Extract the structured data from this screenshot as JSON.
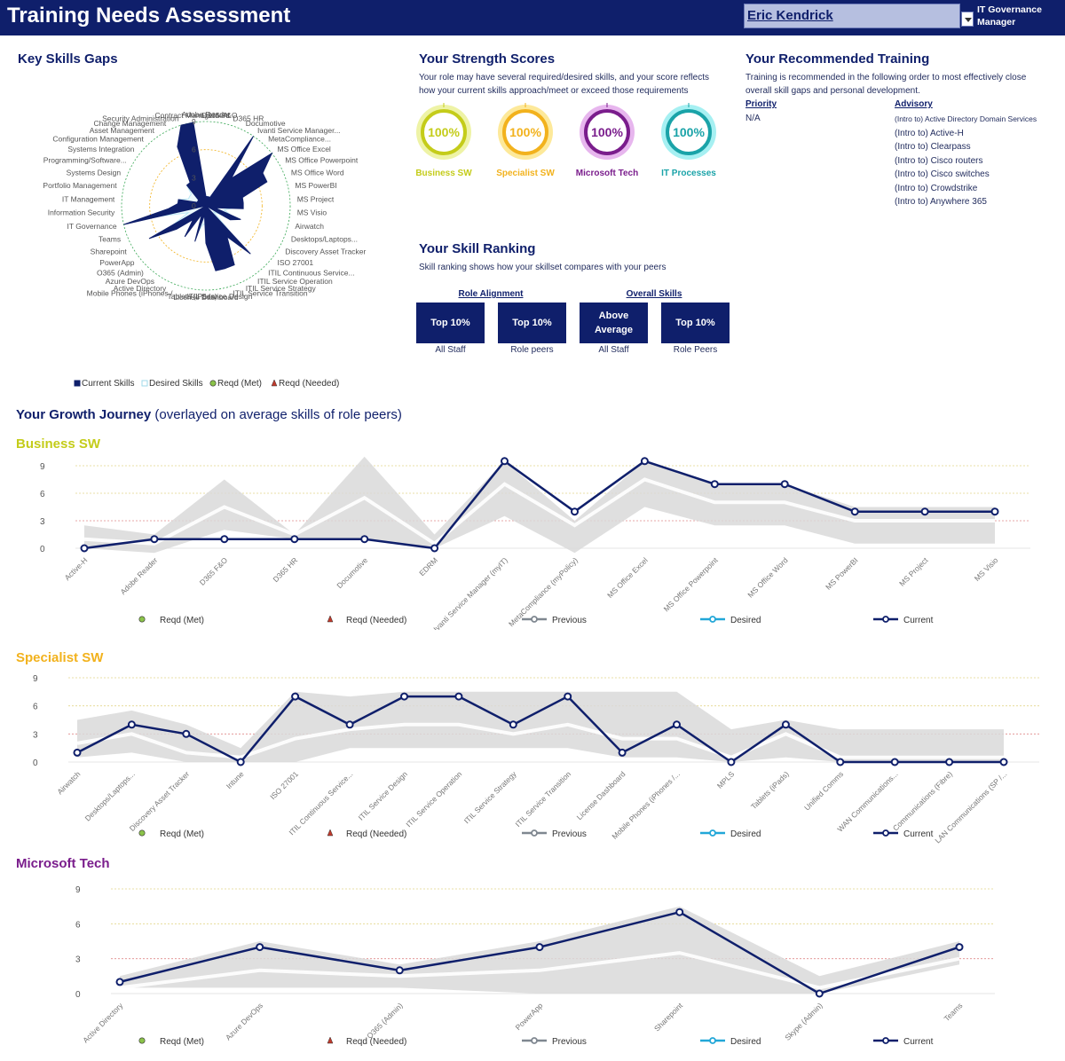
{
  "header": {
    "title": "Training Needs Assessment",
    "user_name": "Eric Kendrick",
    "user_role_line1": "IT Governance",
    "user_role_line2": "Manager"
  },
  "key_skills": {
    "title": "Key Skills Gaps",
    "legend": [
      "Current Skills",
      "Desired Skills",
      "Reqd (Met)",
      "Reqd (Needed)"
    ]
  },
  "strength": {
    "title": "Your Strength Scores",
    "desc_line1": "Your role may have several required/desired skills, and your score reflects",
    "desc_line2": "how your current skills approach/meet or exceed those requirements",
    "scores": [
      {
        "label": "Business SW",
        "value": "100%",
        "color": "#c4cc1a",
        "fill": "#eef3a6"
      },
      {
        "label": "Specialist SW",
        "value": "100%",
        "color": "#f2b21d",
        "fill": "#fde99a"
      },
      {
        "label": "Microsoft Tech",
        "value": "100%",
        "color": "#7a1d8c",
        "fill": "#e7b6ee"
      },
      {
        "label": "IT Processes",
        "value": "100%",
        "color": "#1aa3a8",
        "fill": "#a6f0f2"
      }
    ]
  },
  "ranking": {
    "title": "Your Skill Ranking",
    "desc": "Skill ranking shows how your skillset compares with your peers",
    "groups": [
      "Role Alignment",
      "Overall Skills"
    ],
    "boxes": [
      {
        "value_line1": "Top 10%",
        "value_line2": "",
        "sub": "All Staff"
      },
      {
        "value_line1": "Top 10%",
        "value_line2": "",
        "sub": "Role peers"
      },
      {
        "value_line1": "Above",
        "value_line2": "Average",
        "sub": "All Staff"
      },
      {
        "value_line1": "Top 10%",
        "value_line2": "",
        "sub": "Role Peers"
      }
    ]
  },
  "training": {
    "title": "Your Recommended Training",
    "desc_line1": "Training is recommended in the following order to most effectively close",
    "desc_line2": "overall skill gaps and personal development.",
    "priority_header": "Priority",
    "priority_value": "N/A",
    "advisory_header": "Advisory",
    "advisory_items": [
      "(Intro to) Active Directory Domain Services",
      "(Intro to) Active-H",
      "(Intro to) Clearpass",
      "(Intro to) Cisco routers",
      "(Intro to) Cisco switches",
      "(Intro to) Crowdstrike",
      "(Intro to) Anywhere 365"
    ]
  },
  "growth": {
    "title": "Your Growth Journey",
    "subtitle": "(overlayed on average skills of role peers)",
    "legend": [
      "Reqd (Met)",
      "Reqd (Needed)",
      "Previous",
      "Desired",
      "Current"
    ]
  },
  "colors": {
    "navy": "#0f1f6b",
    "business": "#c4cc1a",
    "specialist": "#f2b21d",
    "microsoft": "#7a1d8c",
    "desired": "#22a7d8",
    "previous": "#7f8790",
    "band": "#d9d9d9",
    "green": "#8bc34a",
    "red": "#c0392b"
  },
  "chart_data": [
    {
      "type": "radar",
      "title": "Key Skills Gaps",
      "rticks": [
        0,
        3,
        6,
        9
      ],
      "rlim": [
        0,
        9
      ],
      "categories": [
        "Adobe Reader",
        "D365 F&O",
        "D365 HR",
        "Documotive",
        "Ivanti Service Manager...",
        "MetaCompliance...",
        "MS Office Excel",
        "MS Office Powerpoint",
        "MS Office Word",
        "MS PowerBI",
        "MS Project",
        "MS Visio",
        "Airwatch",
        "Desktops/Laptops...",
        "Discovery Asset Tracker",
        "ISO 27001",
        "ITIL Continuous Service...",
        "ITIL Service Operation",
        "ITIL Service Strategy",
        "ITIL Service Transition",
        "ITIL Service Design",
        "License Dashboard",
        "Tablets (iPads)",
        "Mobile Phones (iPhones /...",
        "Active Directory",
        "Azure DevOps",
        "O365 (Admin)",
        "PowerApp",
        "Sharepoint",
        "Teams",
        "IT Governance",
        "Information Security",
        "IT Management",
        "Portfolio Management",
        "Systems Design",
        "Programming/Software...",
        "Systems Integration",
        "Configuration Management",
        "Asset Management",
        "Change Management",
        "Security Administration",
        "Contract Management"
      ],
      "series": [
        {
          "name": "Current Skills",
          "values": [
            1,
            1,
            1,
            1,
            9,
            4,
            9,
            7,
            7,
            4,
            4,
            4,
            1,
            4,
            3,
            0,
            7,
            4,
            7,
            7,
            7,
            4,
            1,
            4,
            1,
            4,
            2,
            4,
            7,
            0,
            9,
            4,
            3,
            3,
            1,
            1,
            1,
            3,
            3,
            7,
            9,
            9
          ]
        },
        {
          "name": "Desired Skills",
          "values": [
            1,
            1,
            1,
            1,
            5,
            3,
            5,
            4,
            4,
            3,
            3,
            3,
            2,
            3,
            2,
            1,
            4,
            3,
            4,
            4,
            4,
            2,
            2,
            3,
            1,
            3,
            2,
            3,
            4,
            2,
            5,
            3,
            3,
            3,
            2,
            2,
            2,
            3,
            3,
            4,
            5,
            5
          ]
        }
      ]
    },
    {
      "type": "line",
      "title": "Business SW",
      "ylim": [
        0,
        9
      ],
      "yticks": [
        0,
        3,
        6,
        9
      ],
      "categories": [
        "Active-H",
        "Adobe Reader",
        "D365 F&O",
        "D365 HR",
        "Documotive",
        "EDRM",
        "Ivanti Service Manager (myIT)",
        "MetaCompliance (myPolicy)",
        "MS Office Excel",
        "MS Office Powerpoint",
        "MS Office Word",
        "MS PowerBI",
        "MS Project",
        "MS Visio"
      ],
      "series": [
        {
          "name": "Current",
          "values": [
            0,
            1,
            1,
            1,
            1,
            0,
            9.5,
            4,
            9.5,
            7,
            7,
            4,
            4,
            4
          ]
        },
        {
          "name": "Desired",
          "values": [
            1,
            0.5,
            4.5,
            1.5,
            5.5,
            0.5,
            7,
            2.5,
            7.5,
            5,
            5,
            3,
            3,
            3
          ]
        },
        {
          "name": "Band High",
          "values": [
            2.5,
            1.5,
            7.5,
            1.5,
            10,
            1.5,
            9.5,
            3,
            9.5,
            7,
            7,
            4.5,
            4.5,
            4.5
          ]
        },
        {
          "name": "Band Low",
          "values": [
            0,
            -0.5,
            2,
            1,
            1,
            0,
            3.5,
            -0.5,
            4.5,
            2.5,
            2.5,
            0.5,
            0.5,
            0.5
          ]
        }
      ]
    },
    {
      "type": "line",
      "title": "Specialist SW",
      "ylim": [
        0,
        9
      ],
      "yticks": [
        0,
        3,
        6,
        9
      ],
      "categories": [
        "Airwatch",
        "Desktops/Laptops...",
        "Discovery Asset Tracker",
        "Intune",
        "ISO 27001",
        "ITIL Continuous Service...",
        "ITIL Service Design",
        "ITIL Service Operation",
        "ITIL Service Strategy",
        "ITIL Service Transition",
        "License Dashboard",
        "Mobile Phones (iPhones /...",
        "MPLS",
        "Tablets (iPads)",
        "Unified Comms",
        "WAN Communications...",
        "Communications (Fibre)",
        "LAN Communications (SP /..."
      ],
      "series": [
        {
          "name": "Current",
          "values": [
            1,
            4,
            3,
            0,
            7,
            4,
            7,
            7,
            4,
            7,
            1,
            4,
            0,
            4,
            0,
            0,
            0,
            0
          ]
        },
        {
          "name": "Desired",
          "values": [
            2,
            3,
            1,
            0.5,
            2.5,
            3.5,
            4,
            4,
            3,
            4,
            2.5,
            2.5,
            0.5,
            3,
            0.5,
            0.5,
            0.5,
            0.5
          ]
        },
        {
          "name": "Band High",
          "values": [
            4.5,
            5.5,
            4,
            1.5,
            7.5,
            7,
            7.5,
            7.5,
            7.5,
            7.5,
            7.5,
            7.5,
            3.5,
            4.5,
            3.5,
            3.5,
            3.5,
            3.5
          ]
        },
        {
          "name": "Band Low",
          "values": [
            0.5,
            1,
            0,
            0,
            0,
            1.5,
            1.5,
            1.5,
            1.5,
            1.5,
            0.5,
            0.5,
            0,
            0.5,
            0,
            0,
            0,
            0
          ]
        }
      ]
    },
    {
      "type": "line",
      "title": "Microsoft Tech",
      "ylim": [
        0,
        9
      ],
      "yticks": [
        0,
        3,
        6,
        9
      ],
      "categories": [
        "Active Directory",
        "Azure DevOps",
        "O365 (Admin)",
        "PowerApp",
        "Sharepoint",
        "Skype (Admin)",
        "Teams"
      ],
      "series": [
        {
          "name": "Current",
          "values": [
            1,
            4,
            2,
            4,
            7,
            0,
            4
          ]
        },
        {
          "name": "Desired",
          "values": [
            0.5,
            2,
            1.5,
            2,
            3.5,
            0.5,
            3
          ]
        },
        {
          "name": "Band High",
          "values": [
            1.5,
            4.5,
            2.5,
            4.5,
            7.5,
            1.5,
            4.5
          ]
        },
        {
          "name": "Band Low",
          "values": [
            0.5,
            0.5,
            0.5,
            0,
            0,
            0,
            2.5
          ]
        }
      ]
    }
  ]
}
